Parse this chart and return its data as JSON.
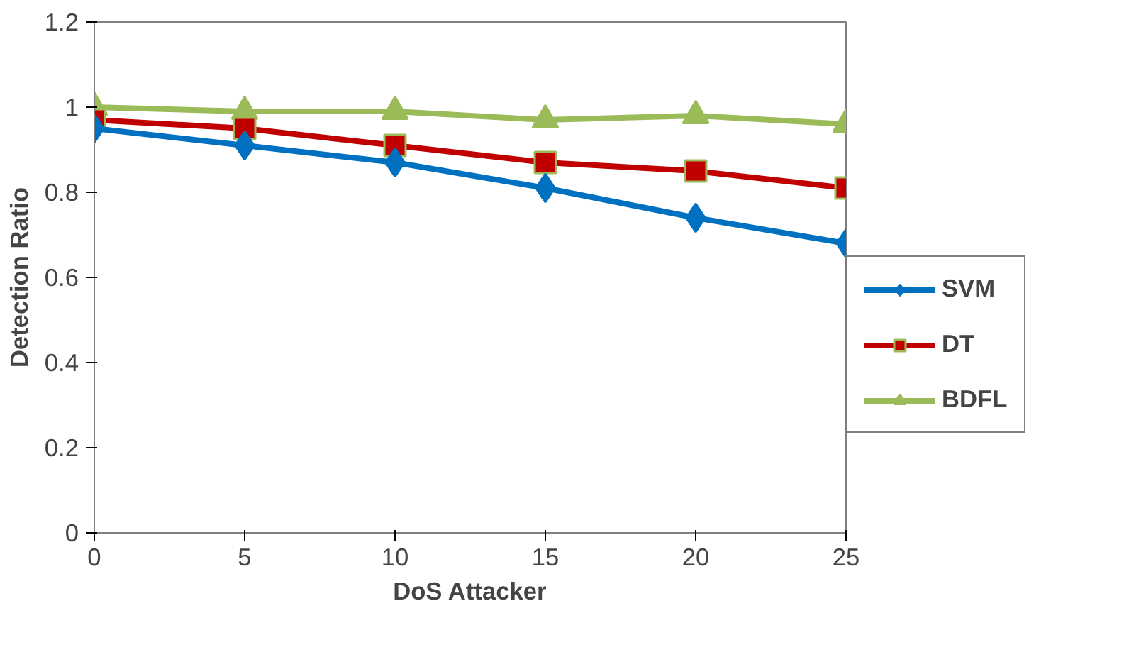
{
  "chart_data": {
    "type": "line",
    "xlabel": "DoS Attacker",
    "ylabel": "Detection Ratio",
    "x": [
      0,
      5,
      10,
      15,
      20,
      25
    ],
    "series": [
      {
        "name": "SVM",
        "color": "#0070c0",
        "marker": "diamond",
        "values": [
          0.95,
          0.91,
          0.87,
          0.81,
          0.74,
          0.68
        ]
      },
      {
        "name": "DT",
        "color": "#c00000",
        "marker": "square",
        "values": [
          0.97,
          0.95,
          0.91,
          0.87,
          0.85,
          0.81
        ]
      },
      {
        "name": "BDFL",
        "color": "#9bbb59",
        "marker": "triangle",
        "values": [
          1.0,
          0.99,
          0.99,
          0.97,
          0.98,
          0.96
        ]
      }
    ],
    "xlim": [
      0,
      25
    ],
    "xticks": [
      0,
      5,
      10,
      15,
      20,
      25
    ],
    "ylim": [
      0,
      1.2
    ],
    "yticks": [
      0,
      {
        "value": 0.2,
        "label": "0.2"
      },
      {
        "value": 0.4,
        "label": "0.4"
      },
      {
        "value": 0.6,
        "label": "0.6"
      },
      {
        "value": 0.8,
        "label": "0.8"
      },
      1,
      {
        "value": 1.2,
        "label": "1.2"
      }
    ],
    "grid": false,
    "legend": "right",
    "line_style": "solid"
  }
}
